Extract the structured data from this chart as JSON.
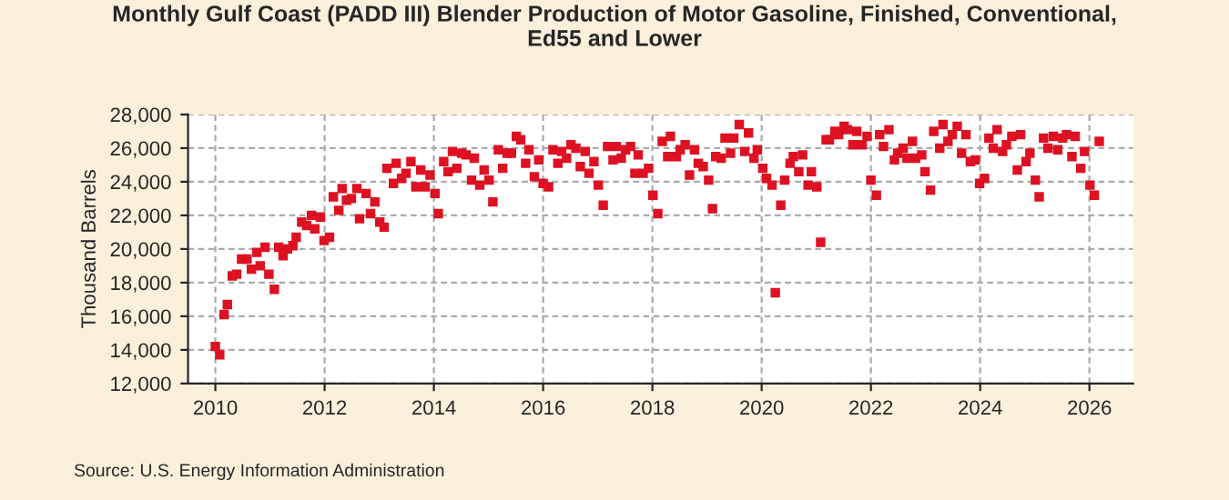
{
  "chart_data": {
    "type": "scatter",
    "title": "Monthly Gulf Coast (PADD III) Blender Production of Motor Gasoline, Finished, Conventional,\nEd55 and Lower",
    "ylabel": "Thousand Barrels",
    "annotations": [
      "Source: U.S. Energy Information Administration"
    ],
    "xlim": [
      2009.5,
      2026.8
    ],
    "xticks": [
      2010,
      2012,
      2014,
      2016,
      2018,
      2020,
      2022,
      2024,
      2026
    ],
    "ylim": [
      12000,
      28000
    ],
    "yticks": [
      {
        "value": 12000,
        "label": "12,000"
      },
      {
        "value": 14000,
        "label": "14,000"
      },
      {
        "value": 16000,
        "label": "16,000"
      },
      {
        "value": 18000,
        "label": "18,000"
      },
      {
        "value": 20000,
        "label": "20,000"
      },
      {
        "value": 22000,
        "label": "22,000"
      },
      {
        "value": 24000,
        "label": "24,000"
      },
      {
        "value": 26000,
        "label": "26,000"
      },
      {
        "value": 28000,
        "label": "28,000"
      }
    ],
    "grid": true,
    "marker": "square",
    "legend": false,
    "series": [
      {
        "color": "#dd1122",
        "x": [
          2010.0,
          2010.08,
          2010.16,
          2010.22,
          2010.31,
          2010.39,
          2010.48,
          2010.58,
          2010.66,
          2010.76,
          2010.82,
          2010.91,
          2010.98,
          2011.08,
          2011.16,
          2011.24,
          2011.32,
          2011.42,
          2011.48,
          2011.58,
          2011.67,
          2011.76,
          2011.82,
          2011.92,
          2011.99,
          2012.09,
          2012.16,
          2012.26,
          2012.32,
          2012.4,
          2012.49,
          2012.59,
          2012.64,
          2012.76,
          2012.84,
          2012.92,
          2013.01,
          2013.09,
          2013.14,
          2013.26,
          2013.31,
          2013.41,
          2013.49,
          2013.58,
          2013.67,
          2013.76,
          2013.84,
          2013.93,
          2014.02,
          2014.08,
          2014.18,
          2014.26,
          2014.34,
          2014.42,
          2014.51,
          2014.59,
          2014.69,
          2014.74,
          2014.84,
          2014.92,
          2015.01,
          2015.08,
          2015.18,
          2015.26,
          2015.34,
          2015.42,
          2015.51,
          2015.59,
          2015.68,
          2015.74,
          2015.84,
          2015.92,
          2016.0,
          2016.1,
          2016.18,
          2016.27,
          2016.34,
          2016.43,
          2016.51,
          2016.6,
          2016.68,
          2016.77,
          2016.84,
          2016.93,
          2017.01,
          2017.1,
          2017.18,
          2017.28,
          2017.34,
          2017.43,
          2017.51,
          2017.6,
          2017.68,
          2017.74,
          2017.83,
          2017.93,
          2018.01,
          2018.1,
          2018.18,
          2018.28,
          2018.33,
          2018.44,
          2018.51,
          2018.6,
          2018.68,
          2018.77,
          2018.84,
          2018.93,
          2019.03,
          2019.1,
          2019.16,
          2019.26,
          2019.33,
          2019.43,
          2019.49,
          2019.59,
          2019.69,
          2019.76,
          2019.86,
          2019.92,
          2020.02,
          2020.09,
          2020.19,
          2020.25,
          2020.35,
          2020.42,
          2020.52,
          2020.58,
          2020.68,
          2020.75,
          2020.85,
          2020.91,
          2021.01,
          2021.08,
          2021.18,
          2021.24,
          2021.34,
          2021.41,
          2021.51,
          2021.57,
          2021.67,
          2021.74,
          2021.84,
          2021.93,
          2022.0,
          2022.1,
          2022.16,
          2022.23,
          2022.33,
          2022.43,
          2022.49,
          2022.59,
          2022.66,
          2022.76,
          2022.82,
          2022.93,
          2022.99,
          2023.09,
          2023.15,
          2023.26,
          2023.32,
          2023.41,
          2023.49,
          2023.58,
          2023.66,
          2023.74,
          2023.82,
          2023.91,
          2023.99,
          2024.08,
          2024.16,
          2024.24,
          2024.31,
          2024.41,
          2024.48,
          2024.58,
          2024.68,
          2024.74,
          2024.84,
          2024.91,
          2025.01,
          2025.08,
          2025.16,
          2025.24,
          2025.34,
          2025.42,
          2025.51,
          2025.58,
          2025.68,
          2025.74,
          2025.84,
          2025.91,
          2026.01,
          2026.09,
          2026.18
        ],
        "values": [
          14200,
          13700,
          16100,
          16700,
          18400,
          18500,
          19400,
          19400,
          18800,
          19800,
          19000,
          20100,
          18500,
          17600,
          20100,
          19600,
          20000,
          20200,
          20700,
          21600,
          21400,
          22000,
          21200,
          21900,
          20500,
          20700,
          23100,
          22300,
          23600,
          22900,
          23000,
          23600,
          21800,
          23300,
          22100,
          22800,
          21600,
          21300,
          24800,
          23900,
          25100,
          24200,
          24500,
          25200,
          23700,
          24700,
          23700,
          24400,
          23300,
          22100,
          25200,
          24600,
          25800,
          24800,
          25700,
          25600,
          24100,
          25400,
          23800,
          24700,
          24100,
          22800,
          25900,
          24800,
          25700,
          25700,
          26700,
          26500,
          25100,
          25900,
          24300,
          25300,
          23900,
          23700,
          25900,
          25100,
          25800,
          25400,
          26200,
          26000,
          24900,
          25800,
          24500,
          25200,
          23800,
          22600,
          26100,
          25300,
          26100,
          25400,
          25900,
          26100,
          24500,
          25600,
          24500,
          24800,
          23200,
          22100,
          26400,
          25500,
          26700,
          25500,
          25900,
          26200,
          24400,
          25900,
          25100,
          24900,
          24100,
          22400,
          25500,
          25400,
          26600,
          25700,
          26600,
          27400,
          25800,
          26900,
          25400,
          25900,
          24800,
          24200,
          23800,
          17400,
          22600,
          24100,
          25100,
          25500,
          24600,
          25600,
          23800,
          24600,
          23700,
          20400,
          26500,
          26500,
          27000,
          26800,
          27300,
          27100,
          26200,
          27000,
          26200,
          26700,
          24100,
          23200,
          26800,
          26100,
          27100,
          25300,
          25700,
          26000,
          25400,
          26400,
          25400,
          25600,
          24600,
          23500,
          27000,
          26000,
          27400,
          26400,
          26800,
          27300,
          25700,
          26800,
          25200,
          25300,
          23900,
          24200,
          26600,
          26000,
          27100,
          25800,
          26200,
          26700,
          24700,
          26800,
          25200,
          25700,
          24100,
          23100,
          26600,
          26000,
          26700,
          25900,
          26600,
          26800,
          25500,
          26700,
          24800,
          25800,
          23800,
          23200,
          26400
        ]
      }
    ]
  }
}
